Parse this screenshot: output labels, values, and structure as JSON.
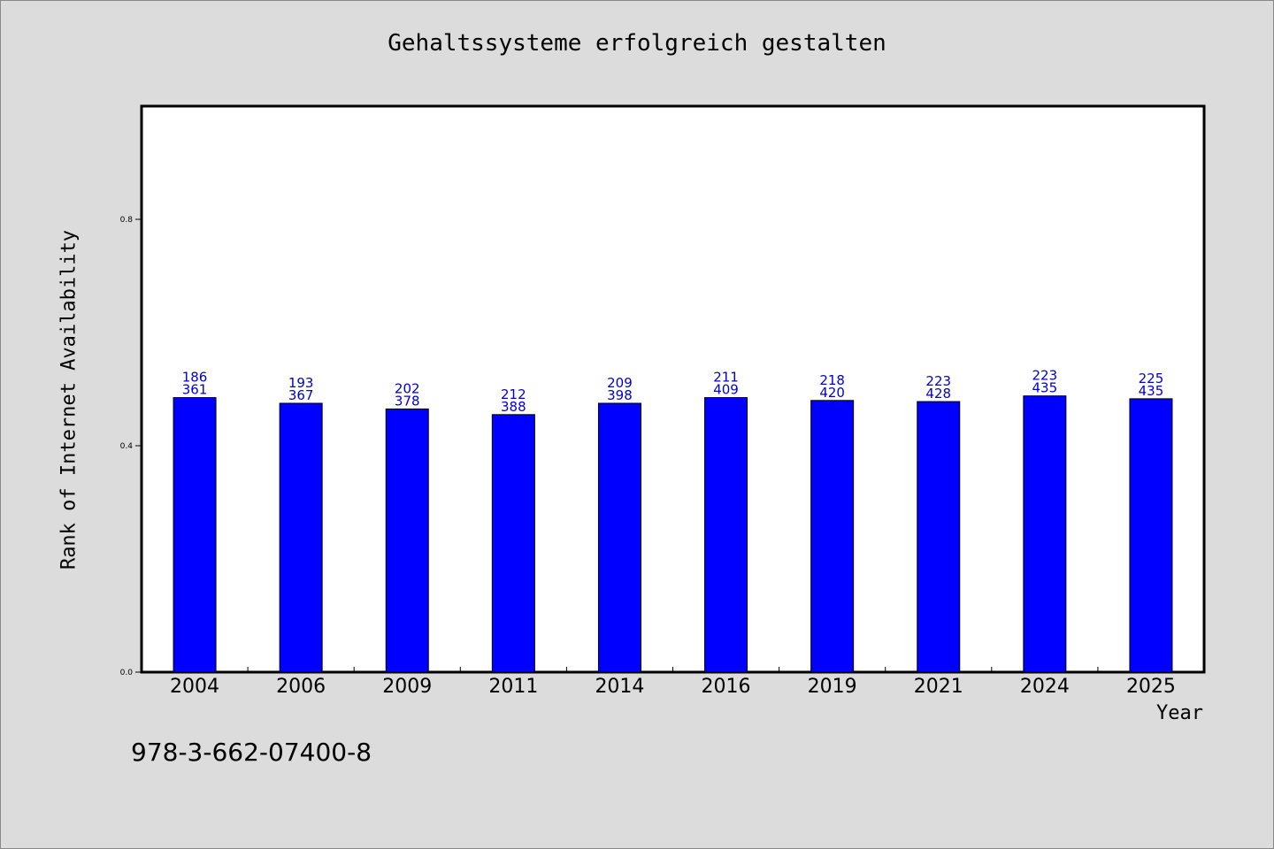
{
  "chart_data": {
    "type": "bar",
    "title": "Gehaltssysteme erfolgreich gestalten",
    "xlabel": "Year",
    "ylabel": "Rank of Internet Availability",
    "categories": [
      "2004",
      "2006",
      "2009",
      "2011",
      "2014",
      "2016",
      "2019",
      "2021",
      "2024",
      "2025"
    ],
    "values": [
      0.485,
      0.475,
      0.465,
      0.455,
      0.475,
      0.485,
      0.48,
      0.478,
      0.488,
      0.483
    ],
    "label_top": [
      "186",
      "193",
      "202",
      "212",
      "209",
      "211",
      "218",
      "223",
      "223",
      "225"
    ],
    "label_bottom": [
      "361",
      "367",
      "378",
      "388",
      "398",
      "409",
      "420",
      "428",
      "435",
      "435"
    ],
    "yticks": [
      "0.0",
      "0.4",
      "0.8"
    ],
    "ytick_values": [
      0.0,
      0.4,
      0.8
    ],
    "ylim": [
      0,
      1.0
    ],
    "bar_color": "#0000ff",
    "label_color": "#0000cc",
    "grid": false,
    "legend": false
  },
  "footer": {
    "isbn": "978-3-662-07400-8"
  },
  "colors": {
    "background": "#dcdcdc",
    "plot_background": "#ffffff"
  }
}
